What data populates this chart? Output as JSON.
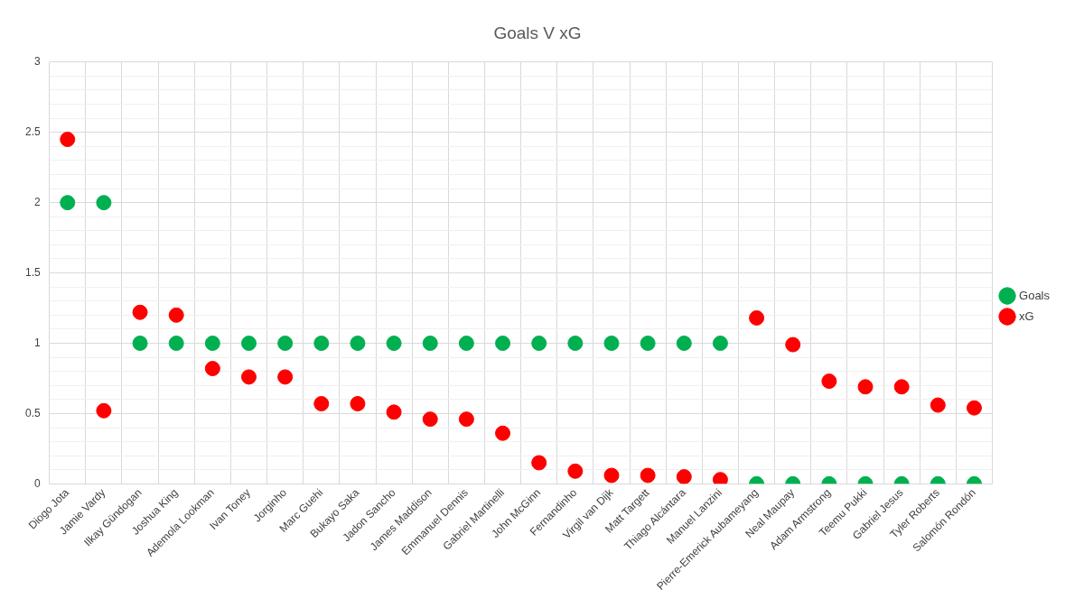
{
  "chart_data": {
    "type": "scatter",
    "title": "Goals V xG",
    "categories": [
      "Diogo Jota",
      "Jamie Vardy",
      "Ilkay Gündogan",
      "Joshua King",
      "Ademola Lookman",
      "Ivan Toney",
      "Jorginho",
      "Marc Guehi",
      "Bukayo Saka",
      "Jadon Sancho",
      "James Maddison",
      "Emmanuel Dennis",
      "Gabriel Martinelli",
      "John McGinn",
      "Fernandinho",
      "Virgil van Dijk",
      "Matt Targett",
      "Thiago Alcántara",
      "Manuel Lanzini",
      "Pierre-Emerick Aubameyang",
      "Neal Maupay",
      "Adam Armstrong",
      "Teemu Pukki",
      "Gabriel Jesus",
      "Tyler Roberts",
      "Salomón Rondón"
    ],
    "series": [
      {
        "name": "Goals",
        "color": "#00b050",
        "values": [
          2,
          2,
          1,
          1,
          1,
          1,
          1,
          1,
          1,
          1,
          1,
          1,
          1,
          1,
          1,
          1,
          1,
          1,
          1,
          0,
          0,
          0,
          0,
          0,
          0,
          0
        ]
      },
      {
        "name": "xG",
        "color": "#ff0000",
        "values": [
          2.45,
          0.52,
          1.22,
          1.2,
          0.82,
          0.76,
          0.76,
          0.57,
          0.57,
          0.51,
          0.46,
          0.46,
          0.36,
          0.15,
          0.09,
          0.06,
          0.06,
          0.05,
          0.03,
          1.18,
          0.99,
          0.73,
          0.69,
          0.69,
          0.56,
          0.54
        ]
      }
    ],
    "ylim": [
      0,
      3
    ],
    "yticks": [
      0,
      {
        "value": 0.1,
        "label": null
      },
      {
        "value": 0.2,
        "label": null
      },
      {
        "value": 0.3,
        "label": null
      },
      {
        "value": 0.4,
        "label": null
      },
      0.5,
      {
        "value": 0.6,
        "label": null
      },
      {
        "value": 0.7,
        "label": null
      },
      {
        "value": 0.8,
        "label": null
      },
      {
        "value": 0.9,
        "label": null
      },
      1,
      {
        "value": 1.1,
        "label": null
      },
      {
        "value": 1.2,
        "label": null
      },
      {
        "value": 1.3,
        "label": null
      },
      {
        "value": 1.4,
        "label": null
      },
      1.5,
      {
        "value": 1.6,
        "label": null
      },
      {
        "value": 1.7,
        "label": null
      },
      {
        "value": 1.8,
        "label": null
      },
      {
        "value": 1.9,
        "label": null
      },
      2,
      {
        "value": 2.1,
        "label": null
      },
      {
        "value": 2.2,
        "label": null
      },
      {
        "value": 2.3,
        "label": null
      },
      {
        "value": 2.4,
        "label": null
      },
      2.5,
      {
        "value": 2.6,
        "label": null
      },
      {
        "value": 2.7,
        "label": null
      },
      {
        "value": 2.8,
        "label": null
      },
      {
        "value": 2.9,
        "label": null
      },
      3
    ],
    "grid": true,
    "legend": "right",
    "marker": "circle"
  }
}
